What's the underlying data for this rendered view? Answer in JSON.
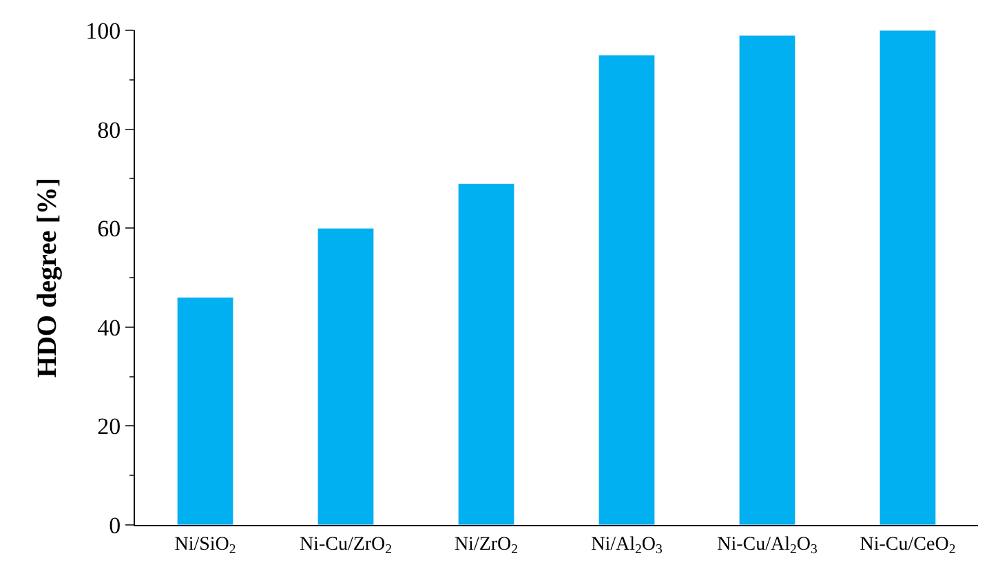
{
  "chart_data": {
    "type": "bar",
    "ylabel": "HDO degree [%]",
    "categories": [
      "Ni/SiO$_{2}$",
      "Ni-Cu/ZrO$_{2}$",
      "Ni/ZrO$_{2}$",
      "Ni/Al$_{2}$O$_{3}$",
      "Ni-Cu/Al$_{2}$O$_{3}$",
      "Ni-Cu/CeO$_{2}$"
    ],
    "values": [
      46,
      60,
      69,
      95,
      99,
      100
    ],
    "color": "#00b0f0",
    "ylim": [
      0,
      100
    ],
    "yticks": [
      0,
      20,
      40,
      60,
      80,
      100
    ]
  }
}
